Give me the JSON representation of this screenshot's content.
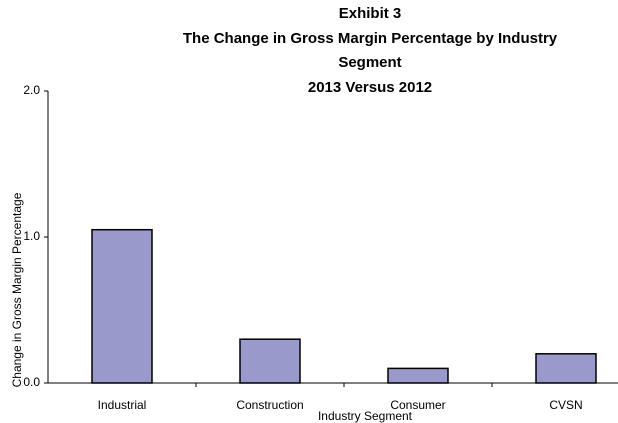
{
  "chart_data": {
    "type": "bar",
    "title": [
      "Exhibit 3",
      "The Change in Gross Margin Percentage by Industry",
      "Segment",
      "2013 Versus 2012"
    ],
    "x_label": "Industry Segment",
    "y_label": "Change in Gross Margin Percentage",
    "categories": [
      "Industrial",
      "Construction",
      "Consumer",
      "CVSN"
    ],
    "values": [
      1.05,
      0.3,
      0.1,
      0.2
    ],
    "color": "#9999cc",
    "ylim": [
      0,
      2
    ],
    "yticks": [
      {
        "value": 0,
        "label": "0.0"
      },
      {
        "value": 1,
        "label": "1.0"
      },
      {
        "value": 2,
        "label": "2.0"
      }
    ],
    "grid": false
  }
}
